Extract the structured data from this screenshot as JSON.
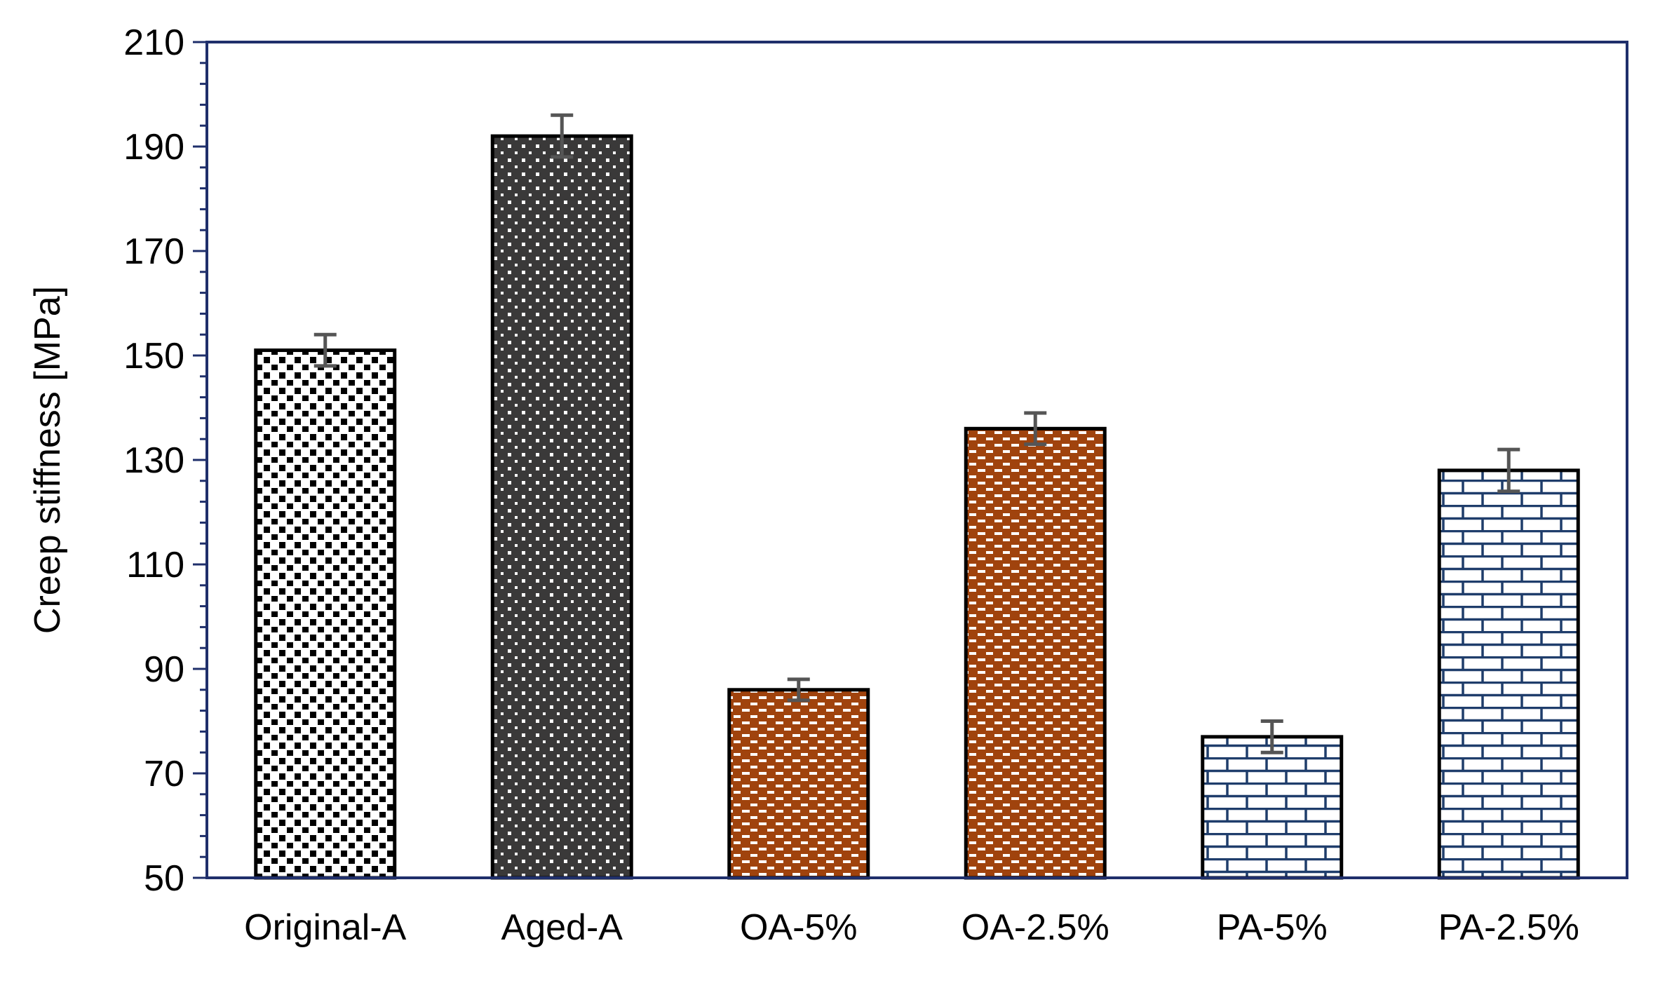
{
  "chart_data": {
    "type": "bar",
    "title": "",
    "xlabel": "",
    "ylabel": "Creep stiffness  [MPa]",
    "ylim": [
      50,
      210
    ],
    "yticks": [
      50,
      70,
      90,
      110,
      130,
      150,
      170,
      190,
      210
    ],
    "grid": false,
    "legend": "none",
    "categories": [
      "Original-A",
      "Aged-A",
      "OA-5%",
      "OA-2.5%",
      "PA-5%",
      "PA-2.5%"
    ],
    "values": [
      151,
      192,
      86,
      136,
      77,
      128
    ],
    "error_low": [
      148,
      188,
      84,
      133,
      74,
      124
    ],
    "error_high": [
      154,
      196,
      88,
      139,
      80,
      132
    ],
    "patterns": [
      "black-squares-on-white",
      "white-dots-on-dark",
      "white-dashes-on-brown",
      "white-dashes-on-brown",
      "blue-brick",
      "blue-brick"
    ],
    "colors": {
      "axis": "#1f2f6b",
      "bar_outline": "#000000",
      "aged_fill": "#3a3939",
      "oa_fill": "#a0430d",
      "pa_line": "#1f3d6b",
      "error_bar": "#555555"
    }
  }
}
